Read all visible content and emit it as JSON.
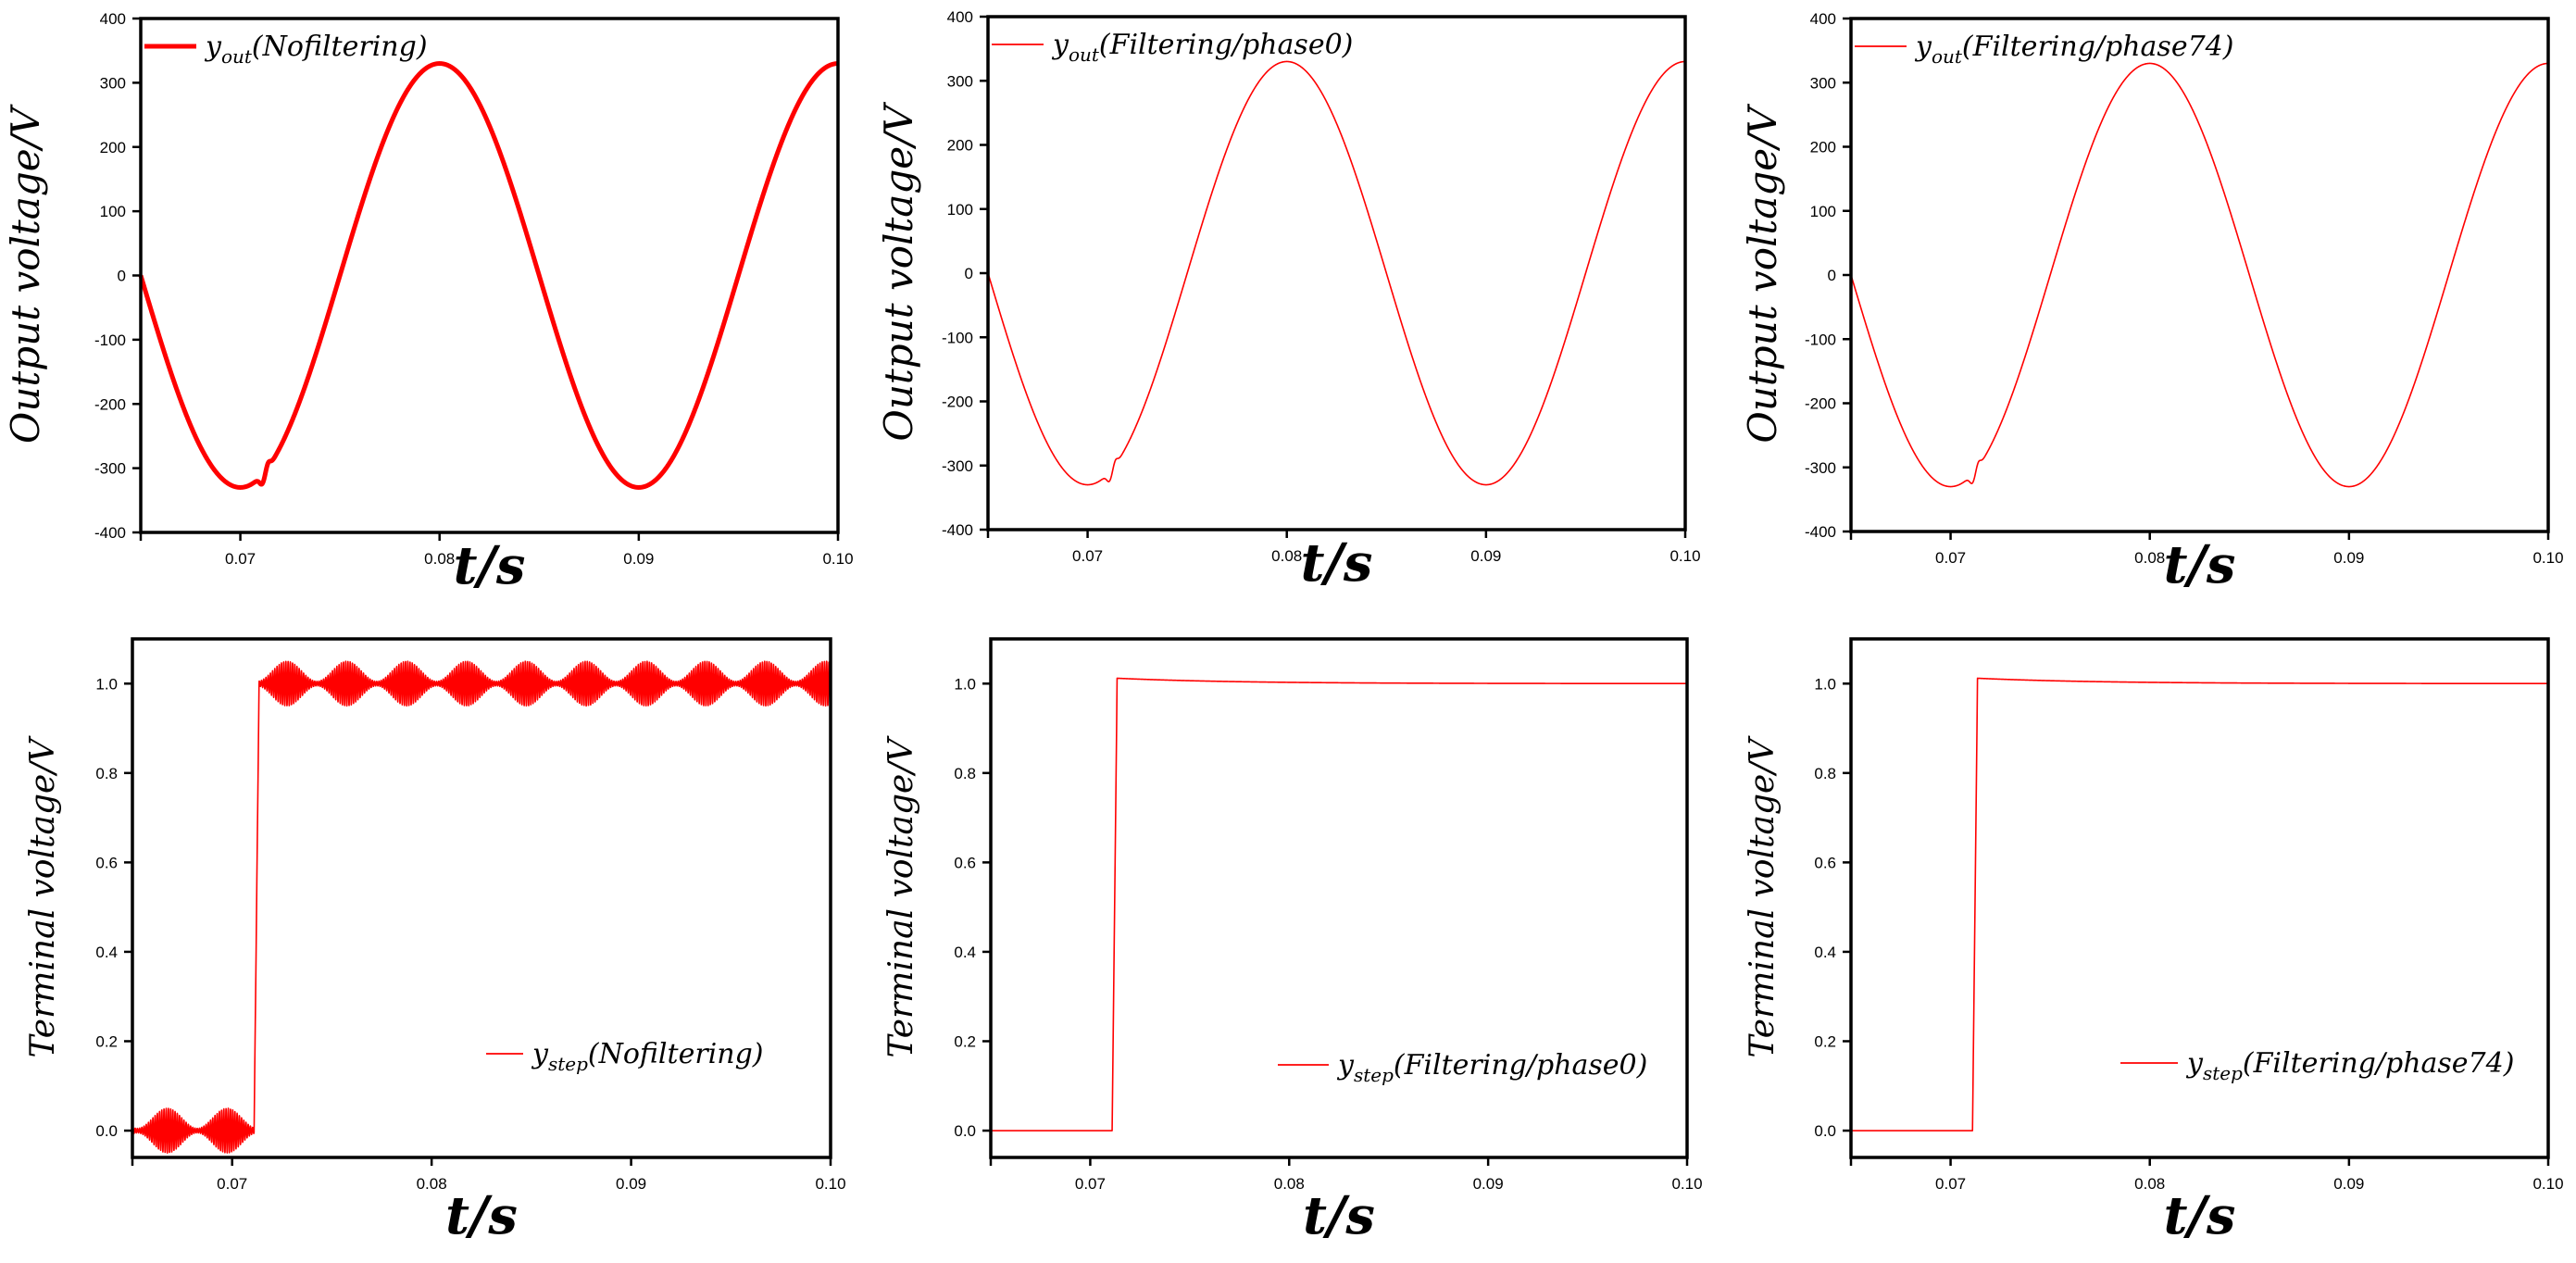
{
  "chart_data": [
    {
      "type": "line",
      "panel": "top-left",
      "ylabel": "Output voltage/V",
      "xlabel": "t/s",
      "xlim": [
        0.065,
        0.1
      ],
      "ylim": [
        -400,
        400
      ],
      "xticks": [
        0.07,
        0.08,
        0.09,
        0.1
      ],
      "xtick_labels": [
        "0.07",
        "0.08",
        "0.09",
        "0.10"
      ],
      "yticks": [
        -400,
        -300,
        -200,
        -100,
        0,
        100,
        200,
        300,
        400
      ],
      "ytick_labels": [
        "-400",
        "-300",
        "-200",
        "-100",
        "0",
        "100",
        "200",
        "300",
        "400"
      ],
      "legend": {
        "base": "y",
        "sub": "out",
        "rest": "(Nofiltering)",
        "placement": "top-left"
      },
      "series": [
        {
          "name": "y_out (Nofiltering)",
          "kind": "sine",
          "amplitude": 330,
          "frequency_hz": 50,
          "phase_zero_at": 0.065,
          "notch_at": 0.0711,
          "line_width": "thick",
          "color": "#ff0000"
        }
      ]
    },
    {
      "type": "line",
      "panel": "top-middle",
      "ylabel": "Output voltage/V",
      "xlabel": "t/s",
      "xlim": [
        0.065,
        0.1
      ],
      "ylim": [
        -400,
        400
      ],
      "xticks": [
        0.07,
        0.08,
        0.09,
        0.1
      ],
      "xtick_labels": [
        "0.07",
        "0.08",
        "0.09",
        "0.10"
      ],
      "yticks": [
        -400,
        -300,
        -200,
        -100,
        0,
        100,
        200,
        300,
        400
      ],
      "ytick_labels": [
        "-400",
        "-300",
        "-200",
        "-100",
        "0",
        "100",
        "200",
        "300",
        "400"
      ],
      "legend": {
        "base": "y",
        "sub": "out",
        "rest": "(Filtering/phase0)",
        "placement": "top-left"
      },
      "series": [
        {
          "name": "y_out (Filtering/phase0)",
          "kind": "sine",
          "amplitude": 330,
          "frequency_hz": 50,
          "phase_zero_at": 0.065,
          "notch_at": 0.0711,
          "line_width": "thin",
          "color": "#ff0000"
        }
      ]
    },
    {
      "type": "line",
      "panel": "top-right",
      "ylabel": "Output voltage/V",
      "xlabel": "t/s",
      "xlim": [
        0.065,
        0.1
      ],
      "ylim": [
        -400,
        400
      ],
      "xticks": [
        0.07,
        0.08,
        0.09,
        0.1
      ],
      "xtick_labels": [
        "0.07",
        "0.08",
        "0.09",
        "0.10"
      ],
      "yticks": [
        -400,
        -300,
        -200,
        -100,
        0,
        100,
        200,
        300,
        400
      ],
      "ytick_labels": [
        "-400",
        "-300",
        "-200",
        "-100",
        "0",
        "100",
        "200",
        "300",
        "400"
      ],
      "legend": {
        "base": "y",
        "sub": "out",
        "rest": "(Filtering/phase74)",
        "placement": "top-left"
      },
      "series": [
        {
          "name": "y_out (Filtering/phase74)",
          "kind": "sine",
          "amplitude": 330,
          "frequency_hz": 50,
          "phase_zero_at": 0.065,
          "notch_at": 0.0711,
          "line_width": "thin",
          "color": "#ff0000"
        }
      ]
    },
    {
      "type": "line",
      "panel": "bottom-left",
      "ylabel": "Terminal voltage/V",
      "xlabel": "t/s",
      "xlim": [
        0.065,
        0.1
      ],
      "ylim": [
        -0.06,
        1.1
      ],
      "xticks": [
        0.07,
        0.08,
        0.09,
        0.1
      ],
      "xtick_labels": [
        "0.07",
        "0.08",
        "0.09",
        "0.10"
      ],
      "yticks": [
        0.0,
        0.2,
        0.4,
        0.6,
        0.8,
        1.0
      ],
      "ytick_labels": [
        "0.0",
        "0.2",
        "0.4",
        "0.6",
        "0.8",
        "1.0"
      ],
      "legend": {
        "base": "y",
        "sub": "step",
        "rest": "(Nofiltering)",
        "placement": "bottom-right"
      },
      "series": [
        {
          "name": "y_step (Nofiltering)",
          "kind": "step",
          "step_at": 0.0711,
          "low": 0.0,
          "high": 1.0,
          "ripple": 0.05,
          "ripple_mod_period": 0.003,
          "color": "#ff0000"
        }
      ]
    },
    {
      "type": "line",
      "panel": "bottom-middle",
      "ylabel": "Terminal voltage/V",
      "xlabel": "t/s",
      "xlim": [
        0.065,
        0.1
      ],
      "ylim": [
        -0.06,
        1.1
      ],
      "xticks": [
        0.07,
        0.08,
        0.09,
        0.1
      ],
      "xtick_labels": [
        "0.07",
        "0.08",
        "0.09",
        "0.10"
      ],
      "yticks": [
        0.0,
        0.2,
        0.4,
        0.6,
        0.8,
        1.0
      ],
      "ytick_labels": [
        "0.0",
        "0.2",
        "0.4",
        "0.6",
        "0.8",
        "1.0"
      ],
      "legend": {
        "base": "y",
        "sub": "step",
        "rest": "(Filtering/phase0)",
        "placement": "bottom-right"
      },
      "series": [
        {
          "name": "y_step (Filtering/phase0)",
          "kind": "step",
          "step_at": 0.0711,
          "low": 0.0,
          "high": 1.0,
          "ripple": 0.0,
          "overshoot": 0.012,
          "color": "#ff0000"
        }
      ]
    },
    {
      "type": "line",
      "panel": "bottom-right",
      "ylabel": "Terminal voltage/V",
      "xlabel": "t/s",
      "xlim": [
        0.065,
        0.1
      ],
      "ylim": [
        -0.06,
        1.1
      ],
      "xticks": [
        0.07,
        0.08,
        0.09,
        0.1
      ],
      "xtick_labels": [
        "0.07",
        "0.08",
        "0.09",
        "0.10"
      ],
      "yticks": [
        0.0,
        0.2,
        0.4,
        0.6,
        0.8,
        1.0
      ],
      "ytick_labels": [
        "0.0",
        "0.2",
        "0.4",
        "0.6",
        "0.8",
        "1.0"
      ],
      "legend": {
        "base": "y",
        "sub": "step",
        "rest": "(Filtering/phase74)",
        "placement": "bottom-right"
      },
      "series": [
        {
          "name": "y_step (Filtering/phase74)",
          "kind": "step",
          "step_at": 0.0711,
          "low": 0.0,
          "high": 1.0,
          "ripple": 0.0,
          "overshoot": 0.012,
          "color": "#ff0000"
        }
      ]
    }
  ],
  "colors": {
    "line": "#ff0000",
    "axis": "#000000"
  }
}
